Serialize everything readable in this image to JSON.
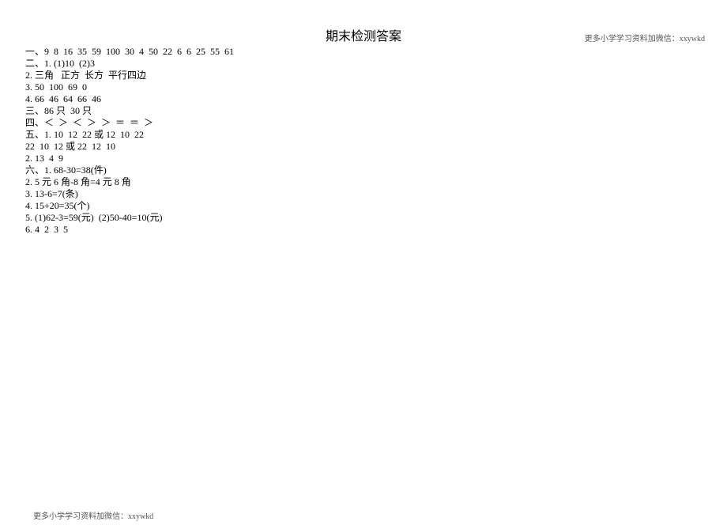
{
  "header_note": "更多小学学习资料加微信：xxywkd",
  "footer_note": "更多小学学习资料加微信：xxywkd",
  "title": "期末检测答案",
  "lines": [
    "一、9  8  16  35  59  100  30  4  50  22  6  6  25  55  61",
    "二、1. (1)10  (2)3",
    "2. 三角   正方  长方  平行四边",
    "3. 50  100  69  0",
    "4. 66  46  64  66  46",
    "三、86 只  30 只",
    "四、＜  ＞  ＜  ＞  ＞  ＝  ＝  ＞",
    "五、1. 10  12  22 或 12  10  22",
    "22  10  12 或 22  12  10",
    "2. 13  4  9",
    "六、1. 68-30=38(件)",
    "2. 5 元 6 角-8 角=4 元 8 角",
    "3. 13-6=7(条)",
    "4. 15+20=35(个)",
    "5. (1)62-3=59(元)  (2)50-40=10(元)",
    "6. 4  2  3  5"
  ]
}
